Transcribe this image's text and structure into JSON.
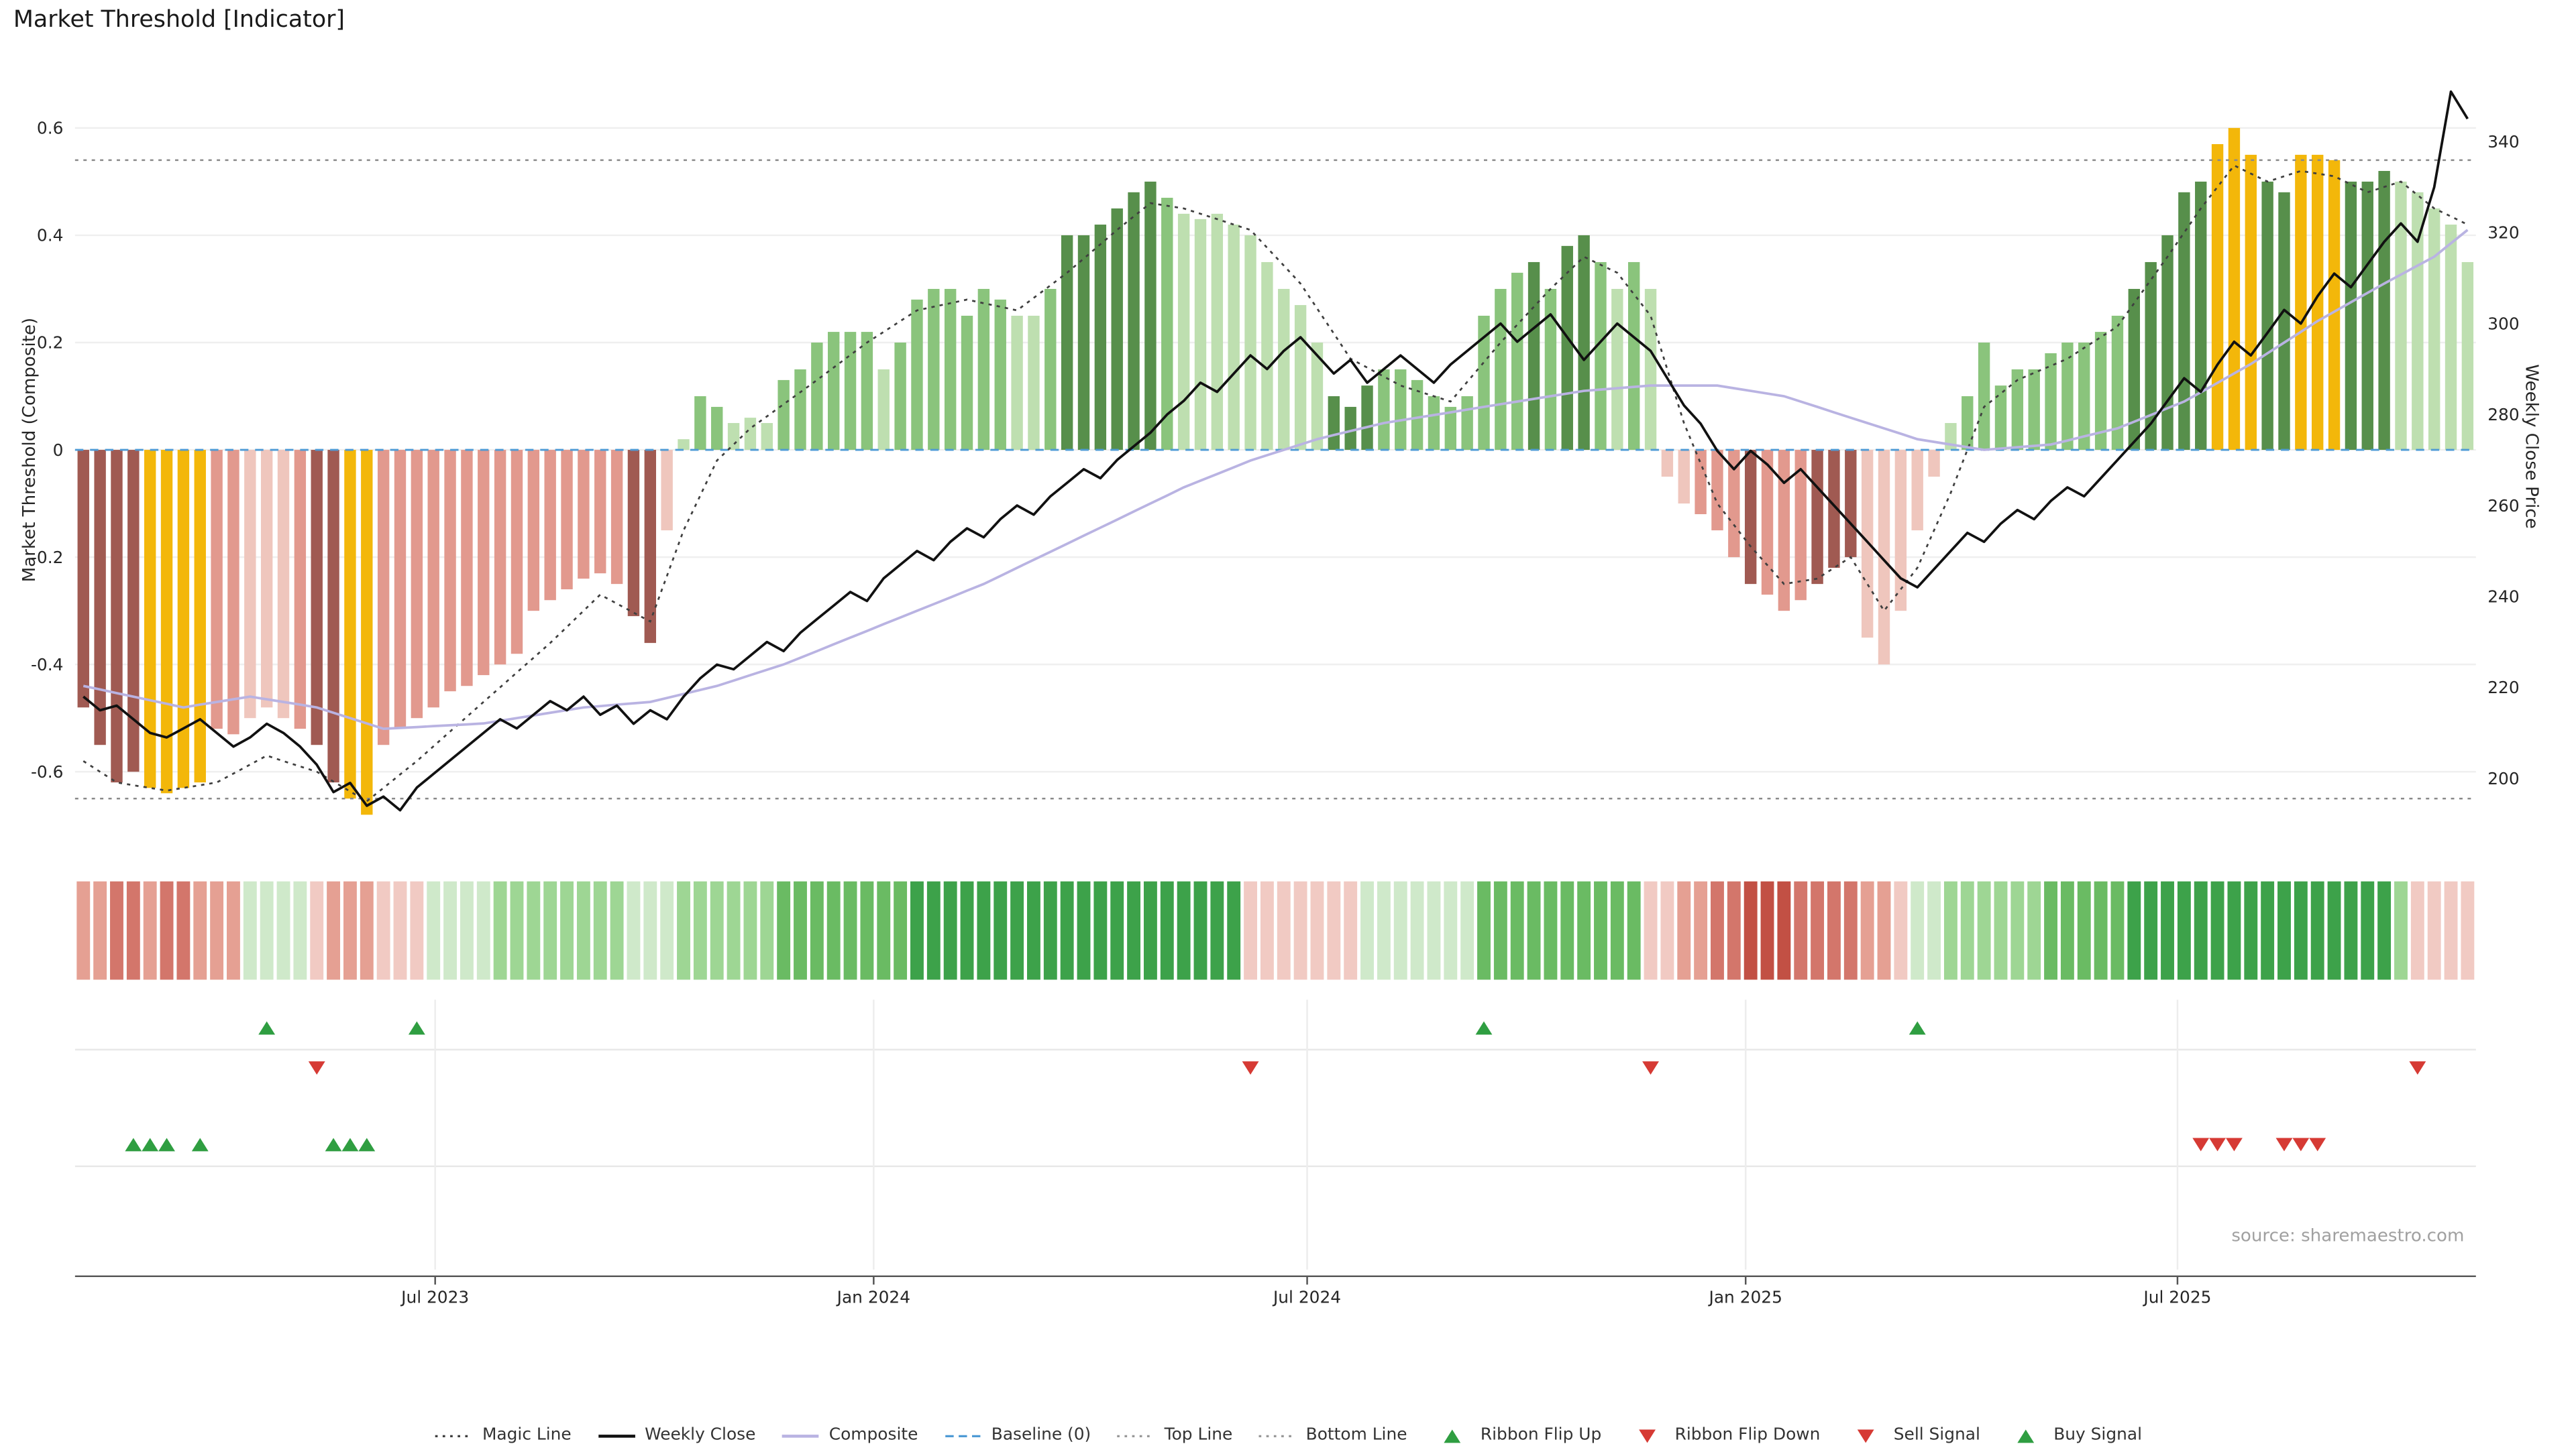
{
  "title": "Market Threshold [Indicator]",
  "source": "source: sharemaestro.com",
  "axes": {
    "left_label": "Market Threshold (Composite)",
    "right_label": "Weekly Close Price",
    "left_ticks": [
      {
        "label": "0.6",
        "value": 0.6
      },
      {
        "label": "0.4",
        "value": 0.4
      },
      {
        "label": "0.2",
        "value": 0.2
      },
      {
        "label": "0",
        "value": 0
      },
      {
        "label": "-0.2",
        "value": -0.2
      },
      {
        "label": "-0.4",
        "value": -0.4
      },
      {
        "label": "-0.6",
        "value": -0.6
      }
    ],
    "right_ticks": [
      {
        "label": "340",
        "value": 340
      },
      {
        "label": "320",
        "value": 320
      },
      {
        "label": "300",
        "value": 300
      },
      {
        "label": "280",
        "value": 280
      },
      {
        "label": "260",
        "value": 260
      },
      {
        "label": "240",
        "value": 240
      },
      {
        "label": "220",
        "value": 220
      },
      {
        "label": "200",
        "value": 200
      }
    ],
    "x_ticks": [
      {
        "label": "Jul 2023",
        "week": 21.1
      },
      {
        "label": "Jan 2024",
        "week": 47.4
      },
      {
        "label": "Jul 2024",
        "week": 73.4
      },
      {
        "label": "Jan 2025",
        "week": 99.7
      },
      {
        "label": "Jul 2025",
        "week": 125.6
      }
    ]
  },
  "chart_data": {
    "type": "combo",
    "description": "Weekly bars of Market Threshold composite (left axis) with weekly close price line (right axis), smoothed composite line, dotted magic line, horizontal top/bottom threshold lines, momentum ribbon strip and trade signal markers.",
    "weeks_start": "2023-02-03",
    "ylim_left": [
      -0.75,
      0.7
    ],
    "ylim_right": [
      190,
      355
    ],
    "baseline": 0,
    "top_line": 0.54,
    "bottom_line": -0.65,
    "bars": [
      [
        -0.48,
        "dr"
      ],
      [
        -0.55,
        "dr"
      ],
      [
        -0.62,
        "dr"
      ],
      [
        -0.6,
        "dr"
      ],
      [
        -0.63,
        "y"
      ],
      [
        -0.64,
        "y"
      ],
      [
        -0.63,
        "y"
      ],
      [
        -0.62,
        "y"
      ],
      [
        -0.52,
        "p"
      ],
      [
        -0.53,
        "p"
      ],
      [
        -0.5,
        "lp"
      ],
      [
        -0.48,
        "lp"
      ],
      [
        -0.5,
        "lp"
      ],
      [
        -0.52,
        "p"
      ],
      [
        -0.55,
        "dr"
      ],
      [
        -0.62,
        "dr"
      ],
      [
        -0.65,
        "y"
      ],
      [
        -0.68,
        "y"
      ],
      [
        -0.55,
        "p"
      ],
      [
        -0.52,
        "p"
      ],
      [
        -0.5,
        "p"
      ],
      [
        -0.48,
        "p"
      ],
      [
        -0.45,
        "p"
      ],
      [
        -0.44,
        "p"
      ],
      [
        -0.42,
        "p"
      ],
      [
        -0.4,
        "p"
      ],
      [
        -0.38,
        "p"
      ],
      [
        -0.3,
        "p"
      ],
      [
        -0.28,
        "p"
      ],
      [
        -0.26,
        "p"
      ],
      [
        -0.24,
        "p"
      ],
      [
        -0.23,
        "p"
      ],
      [
        -0.25,
        "p"
      ],
      [
        -0.31,
        "dr"
      ],
      [
        -0.36,
        "dr"
      ],
      [
        -0.15,
        "lp"
      ],
      [
        0.02,
        "lg"
      ],
      [
        0.1,
        "g"
      ],
      [
        0.08,
        "g"
      ],
      [
        0.05,
        "lg"
      ],
      [
        0.06,
        "lg"
      ],
      [
        0.05,
        "lg"
      ],
      [
        0.13,
        "g"
      ],
      [
        0.15,
        "g"
      ],
      [
        0.2,
        "g"
      ],
      [
        0.22,
        "g"
      ],
      [
        0.22,
        "g"
      ],
      [
        0.22,
        "g"
      ],
      [
        0.15,
        "lg"
      ],
      [
        0.2,
        "g"
      ],
      [
        0.28,
        "g"
      ],
      [
        0.3,
        "g"
      ],
      [
        0.3,
        "g"
      ],
      [
        0.25,
        "g"
      ],
      [
        0.3,
        "g"
      ],
      [
        0.28,
        "g"
      ],
      [
        0.25,
        "lg"
      ],
      [
        0.25,
        "lg"
      ],
      [
        0.3,
        "g"
      ],
      [
        0.4,
        "dg"
      ],
      [
        0.4,
        "dg"
      ],
      [
        0.42,
        "dg"
      ],
      [
        0.45,
        "dg"
      ],
      [
        0.48,
        "dg"
      ],
      [
        0.5,
        "dg"
      ],
      [
        0.47,
        "g"
      ],
      [
        0.44,
        "lg"
      ],
      [
        0.43,
        "lg"
      ],
      [
        0.44,
        "lg"
      ],
      [
        0.42,
        "lg"
      ],
      [
        0.4,
        "lg"
      ],
      [
        0.35,
        "lg"
      ],
      [
        0.3,
        "lg"
      ],
      [
        0.27,
        "lg"
      ],
      [
        0.2,
        "lg"
      ],
      [
        0.1,
        "dg"
      ],
      [
        0.08,
        "dg"
      ],
      [
        0.12,
        "dg"
      ],
      [
        0.15,
        "g"
      ],
      [
        0.15,
        "g"
      ],
      [
        0.13,
        "g"
      ],
      [
        0.1,
        "g"
      ],
      [
        0.08,
        "g"
      ],
      [
        0.1,
        "g"
      ],
      [
        0.25,
        "g"
      ],
      [
        0.3,
        "g"
      ],
      [
        0.33,
        "g"
      ],
      [
        0.35,
        "dg"
      ],
      [
        0.3,
        "g"
      ],
      [
        0.38,
        "dg"
      ],
      [
        0.4,
        "dg"
      ],
      [
        0.35,
        "g"
      ],
      [
        0.3,
        "lg"
      ],
      [
        0.35,
        "g"
      ],
      [
        0.3,
        "lg"
      ],
      [
        -0.05,
        "lp"
      ],
      [
        -0.1,
        "lp"
      ],
      [
        -0.12,
        "p"
      ],
      [
        -0.15,
        "p"
      ],
      [
        -0.2,
        "p"
      ],
      [
        -0.25,
        "dr"
      ],
      [
        -0.27,
        "p"
      ],
      [
        -0.3,
        "p"
      ],
      [
        -0.28,
        "p"
      ],
      [
        -0.25,
        "dr"
      ],
      [
        -0.22,
        "dr"
      ],
      [
        -0.2,
        "dr"
      ],
      [
        -0.35,
        "lp"
      ],
      [
        -0.4,
        "lp"
      ],
      [
        -0.3,
        "lp"
      ],
      [
        -0.15,
        "lp"
      ],
      [
        -0.05,
        "lp"
      ],
      [
        0.05,
        "lg"
      ],
      [
        0.1,
        "g"
      ],
      [
        0.2,
        "g"
      ],
      [
        0.12,
        "g"
      ],
      [
        0.15,
        "g"
      ],
      [
        0.15,
        "g"
      ],
      [
        0.18,
        "g"
      ],
      [
        0.2,
        "g"
      ],
      [
        0.2,
        "g"
      ],
      [
        0.22,
        "g"
      ],
      [
        0.25,
        "g"
      ],
      [
        0.3,
        "dg"
      ],
      [
        0.35,
        "dg"
      ],
      [
        0.4,
        "dg"
      ],
      [
        0.48,
        "dg"
      ],
      [
        0.5,
        "dg"
      ],
      [
        0.57,
        "y"
      ],
      [
        0.6,
        "y"
      ],
      [
        0.55,
        "y"
      ],
      [
        0.5,
        "dg"
      ],
      [
        0.48,
        "dg"
      ],
      [
        0.55,
        "y"
      ],
      [
        0.55,
        "y"
      ],
      [
        0.54,
        "y"
      ],
      [
        0.5,
        "dg"
      ],
      [
        0.5,
        "dg"
      ],
      [
        0.52,
        "dg"
      ],
      [
        0.5,
        "lg"
      ],
      [
        0.48,
        "lg"
      ],
      [
        0.45,
        "lg"
      ],
      [
        0.42,
        "lg"
      ],
      [
        0.35,
        "lg"
      ]
    ],
    "weekly_close": [
      218,
      215,
      216,
      213,
      210,
      209,
      211,
      213,
      210,
      207,
      209,
      212,
      210,
      207,
      203,
      197,
      199,
      194,
      196,
      193,
      198,
      201,
      204,
      207,
      210,
      213,
      211,
      214,
      217,
      215,
      218,
      214,
      216,
      212,
      215,
      213,
      218,
      222,
      225,
      224,
      227,
      230,
      228,
      232,
      235,
      238,
      241,
      239,
      244,
      247,
      250,
      248,
      252,
      255,
      253,
      257,
      260,
      258,
      262,
      265,
      268,
      266,
      270,
      273,
      276,
      280,
      283,
      287,
      285,
      289,
      293,
      290,
      294,
      297,
      293,
      289,
      292,
      287,
      290,
      293,
      290,
      287,
      291,
      294,
      297,
      300,
      296,
      299,
      302,
      297,
      292,
      296,
      300,
      297,
      294,
      288,
      282,
      278,
      272,
      268,
      272,
      269,
      265,
      268,
      264,
      260,
      256,
      252,
      248,
      244,
      242,
      246,
      250,
      254,
      252,
      256,
      259,
      257,
      261,
      264,
      262,
      266,
      270,
      274,
      278,
      283,
      288,
      285,
      291,
      296,
      293,
      298,
      303,
      300,
      306,
      311,
      308,
      313,
      318,
      322,
      318,
      330,
      351,
      345
    ],
    "composite_line_keypoints": [
      [
        0,
        -0.44
      ],
      [
        6,
        -0.48
      ],
      [
        10,
        -0.46
      ],
      [
        14,
        -0.48
      ],
      [
        18,
        -0.52
      ],
      [
        24,
        -0.51
      ],
      [
        30,
        -0.48
      ],
      [
        34,
        -0.47
      ],
      [
        38,
        -0.44
      ],
      [
        42,
        -0.4
      ],
      [
        46,
        -0.35
      ],
      [
        50,
        -0.3
      ],
      [
        54,
        -0.25
      ],
      [
        58,
        -0.19
      ],
      [
        62,
        -0.13
      ],
      [
        66,
        -0.07
      ],
      [
        70,
        -0.02
      ],
      [
        74,
        0.02
      ],
      [
        78,
        0.05
      ],
      [
        82,
        0.07
      ],
      [
        86,
        0.09
      ],
      [
        90,
        0.11
      ],
      [
        94,
        0.12
      ],
      [
        98,
        0.12
      ],
      [
        102,
        0.1
      ],
      [
        106,
        0.06
      ],
      [
        110,
        0.02
      ],
      [
        114,
        0.0
      ],
      [
        118,
        0.01
      ],
      [
        122,
        0.04
      ],
      [
        126,
        0.09
      ],
      [
        130,
        0.16
      ],
      [
        134,
        0.24
      ],
      [
        138,
        0.31
      ],
      [
        141,
        0.36
      ],
      [
        143,
        0.41
      ]
    ],
    "magic_line_keypoints": [
      [
        0,
        -0.58
      ],
      [
        2,
        -0.62
      ],
      [
        5,
        -0.635
      ],
      [
        8,
        -0.62
      ],
      [
        11,
        -0.57
      ],
      [
        14,
        -0.6
      ],
      [
        17,
        -0.655
      ],
      [
        20,
        -0.58
      ],
      [
        24,
        -0.47
      ],
      [
        28,
        -0.36
      ],
      [
        31,
        -0.27
      ],
      [
        34,
        -0.32
      ],
      [
        36,
        -0.15
      ],
      [
        38,
        -0.02
      ],
      [
        40,
        0.04
      ],
      [
        44,
        0.13
      ],
      [
        47,
        0.2
      ],
      [
        50,
        0.26
      ],
      [
        53,
        0.28
      ],
      [
        56,
        0.26
      ],
      [
        59,
        0.33
      ],
      [
        62,
        0.41
      ],
      [
        64,
        0.46
      ],
      [
        66,
        0.45
      ],
      [
        68,
        0.43
      ],
      [
        70,
        0.41
      ],
      [
        73,
        0.31
      ],
      [
        76,
        0.17
      ],
      [
        79,
        0.12
      ],
      [
        82,
        0.09
      ],
      [
        85,
        0.2
      ],
      [
        88,
        0.3
      ],
      [
        90,
        0.36
      ],
      [
        92,
        0.33
      ],
      [
        94,
        0.25
      ],
      [
        96,
        0.05
      ],
      [
        98,
        -0.1
      ],
      [
        100,
        -0.18
      ],
      [
        102,
        -0.25
      ],
      [
        104,
        -0.24
      ],
      [
        106,
        -0.2
      ],
      [
        108,
        -0.3
      ],
      [
        110,
        -0.22
      ],
      [
        112,
        -0.08
      ],
      [
        114,
        0.08
      ],
      [
        116,
        0.13
      ],
      [
        119,
        0.17
      ],
      [
        122,
        0.23
      ],
      [
        125,
        0.36
      ],
      [
        127,
        0.45
      ],
      [
        129,
        0.53
      ],
      [
        131,
        0.5
      ],
      [
        133,
        0.52
      ],
      [
        135,
        0.51
      ],
      [
        137,
        0.48
      ],
      [
        139,
        0.5
      ],
      [
        141,
        0.45
      ],
      [
        143,
        0.42
      ]
    ],
    "ribbon": [
      "r2",
      "r2",
      "r3",
      "r3",
      "r2",
      "r3",
      "r3",
      "r2",
      "r2",
      "r2",
      "g1",
      "g1",
      "g1",
      "g1",
      "r1",
      "r2",
      "r2",
      "r2",
      "r1",
      "r1",
      "r1",
      "g1",
      "g1",
      "g1",
      "g1",
      "g2",
      "g2",
      "g2",
      "g2",
      "g2",
      "g2",
      "g2",
      "g2",
      "g1",
      "g1",
      "g1",
      "g2",
      "g2",
      "g2",
      "g2",
      "g2",
      "g2",
      "g3",
      "g3",
      "g3",
      "g3",
      "g3",
      "g3",
      "g3",
      "g3",
      "g4",
      "g4",
      "g4",
      "g4",
      "g4",
      "g4",
      "g4",
      "g4",
      "g4",
      "g4",
      "g4",
      "g4",
      "g4",
      "g4",
      "g4",
      "g4",
      "g4",
      "g4",
      "g4",
      "g4",
      "r1",
      "r1",
      "r1",
      "r1",
      "r1",
      "r1",
      "r1",
      "g1",
      "g1",
      "g1",
      "g1",
      "g1",
      "g1",
      "g1",
      "g3",
      "g3",
      "g3",
      "g3",
      "g3",
      "g3",
      "g3",
      "g3",
      "g3",
      "g3",
      "r1",
      "r1",
      "r2",
      "r2",
      "r3",
      "r3",
      "r4",
      "r4",
      "r4",
      "r3",
      "r3",
      "r3",
      "r3",
      "r2",
      "r2",
      "r1",
      "g1",
      "g1",
      "g2",
      "g2",
      "g2",
      "g2",
      "g2",
      "g2",
      "g3",
      "g3",
      "g3",
      "g3",
      "g3",
      "g4",
      "g4",
      "g4",
      "g4",
      "g4",
      "g4",
      "g4",
      "g4",
      "g4",
      "g4",
      "g4",
      "g4",
      "g4",
      "g4",
      "g4",
      "g4",
      "g2",
      "r1",
      "r1",
      "r1",
      "r1"
    ],
    "signals": {
      "ribbon_flip_up": [
        11,
        20,
        84,
        110
      ],
      "ribbon_flip_down": [
        14,
        70,
        94,
        140
      ],
      "buy": [
        3,
        4,
        5,
        7,
        15,
        16,
        17
      ],
      "sell": [
        127,
        128,
        129,
        132,
        133,
        134
      ]
    }
  },
  "legend": {
    "items": [
      {
        "label": "Magic Line",
        "marker": "dotted",
        "color": "#3f3f3f"
      },
      {
        "label": "Weekly Close",
        "marker": "line",
        "color": "#111111"
      },
      {
        "label": "Composite",
        "marker": "line",
        "color": "#b9b3e2"
      },
      {
        "label": "Baseline (0)",
        "marker": "dashed",
        "color": "#4f9bd5"
      },
      {
        "label": "Top Line",
        "marker": "dotted",
        "color": "#999999"
      },
      {
        "label": "Bottom Line",
        "marker": "dotted",
        "color": "#999999"
      },
      {
        "label": "Ribbon Flip Up",
        "marker": "tri-up",
        "color": "#2f9e41"
      },
      {
        "label": "Ribbon Flip Down",
        "marker": "tri-down",
        "color": "#d63a34"
      },
      {
        "label": "Sell Signal",
        "marker": "tri-down",
        "color": "#d63a34"
      },
      {
        "label": "Buy Signal",
        "marker": "tri-up",
        "color": "#2f9e41"
      }
    ]
  },
  "colors": {
    "bars": {
      "dr": "#a05a52",
      "p": "#e2998e",
      "lp": "#efc6bd",
      "y": "#f3b70a",
      "lg": "#bedfb0",
      "g": "#8ac47c",
      "dg": "#578f4b"
    },
    "ribbon": {
      "r1": "#f1cac3",
      "r2": "#e5a093",
      "r3": "#d3766b",
      "r4": "#c25044",
      "g1": "#cfe9ca",
      "g2": "#9ed694",
      "g3": "#6abb63",
      "g4": "#3da24a"
    },
    "weekly_close": "#111111",
    "composite": "#b9b3e2",
    "magic": "#3f3f3f",
    "baseline": "#4f9bd5",
    "top_bottom": "#8a8a8a",
    "signal_up": "#2f9e41",
    "signal_down": "#d63a34",
    "grid": "#efefef",
    "axis_text": "#262626"
  }
}
